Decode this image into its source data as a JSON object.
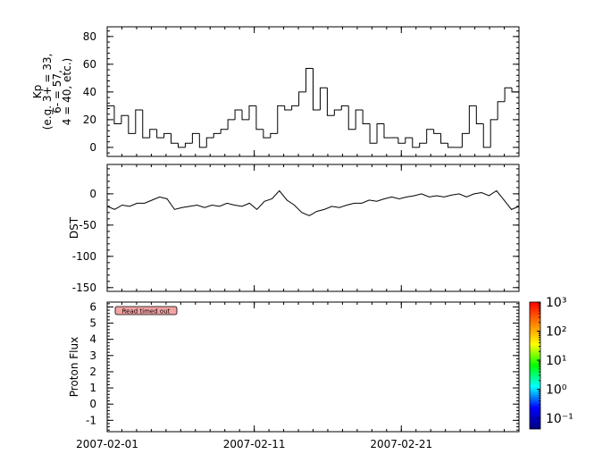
{
  "chart_data": [
    {
      "type": "step",
      "ylabel": [
        "Kp",
        "(e.g. 3+ = 33,",
        "6- = 57,",
        "4 = 40, etc.)"
      ],
      "xlim": [
        "2007-02-01",
        "2007-03-01"
      ],
      "xticks": [
        "2007-02-01",
        "2007-02-11",
        "2007-02-21"
      ],
      "ylim": [
        -6.5,
        87
      ],
      "yticks": [
        0,
        20,
        40,
        60,
        80
      ],
      "color": "#000000",
      "values": [
        30,
        17,
        23,
        10,
        27,
        7,
        13,
        7,
        10,
        3,
        0,
        3,
        10,
        0,
        7,
        10,
        13,
        20,
        27,
        20,
        30,
        13,
        7,
        10,
        30,
        27,
        30,
        40,
        57,
        27,
        43,
        23,
        27,
        30,
        13,
        27,
        17,
        3,
        17,
        7,
        7,
        3,
        7,
        0,
        3,
        13,
        10,
        3,
        0,
        0,
        10,
        30,
        17,
        0,
        20,
        33,
        43,
        40
      ]
    },
    {
      "type": "line",
      "ylabel": [
        "DST"
      ],
      "xlim": [
        "2007-02-01",
        "2007-03-01"
      ],
      "xticks": [
        "2007-02-01",
        "2007-02-11",
        "2007-02-21"
      ],
      "ylim": [
        -156,
        47
      ],
      "yticks": [
        0,
        -50,
        -100,
        -150
      ],
      "color": "#000000",
      "values": [
        -20,
        -25,
        -18,
        -20,
        -15,
        -15,
        -10,
        -5,
        -8,
        -25,
        -22,
        -20,
        -18,
        -22,
        -18,
        -20,
        -15,
        -18,
        -20,
        -15,
        -25,
        -12,
        -8,
        5,
        -10,
        -18,
        -30,
        -35,
        -28,
        -25,
        -20,
        -22,
        -18,
        -15,
        -15,
        -10,
        -12,
        -8,
        -5,
        -8,
        -5,
        -3,
        0,
        -5,
        -3,
        -5,
        -2,
        0,
        -5,
        0,
        2,
        -3,
        5,
        -10,
        -25,
        -20
      ]
    },
    {
      "type": "heatmap",
      "ylabel": [
        "Proton Flux"
      ],
      "xlim": [
        "2007-02-01",
        "2007-03-01"
      ],
      "xticks": [
        "2007-02-01",
        "2007-02-11",
        "2007-02-21"
      ],
      "ylim": [
        -1.7,
        6.3
      ],
      "yticks": [
        -1,
        0,
        1,
        2,
        3,
        4,
        5,
        6
      ],
      "annotation": "Read timed out",
      "colorbar": {
        "scale": "log",
        "lim": [
          0.043,
          1000
        ],
        "ticks": [
          {
            "value": 0.1,
            "label": "10⁻¹"
          },
          {
            "value": 1,
            "label": "10⁰"
          },
          {
            "value": 10,
            "label": "10¹"
          },
          {
            "value": 100,
            "label": "10²"
          },
          {
            "value": 1000,
            "label": "10³"
          }
        ],
        "colors": [
          "#00007f",
          "#0000ff",
          "#00ffff",
          "#00ff00",
          "#ffff00",
          "#ff7f00",
          "#ff0000"
        ]
      }
    }
  ]
}
